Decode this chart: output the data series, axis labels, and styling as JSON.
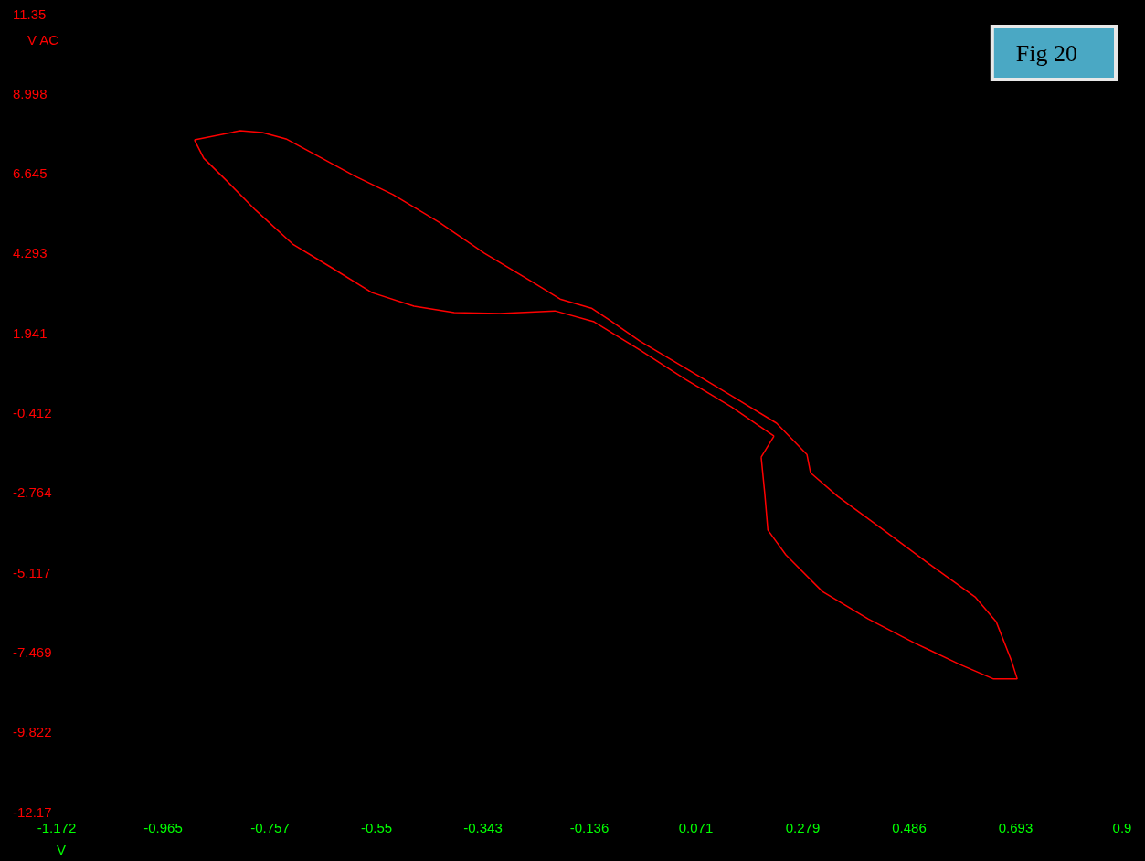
{
  "chart_data": {
    "type": "line",
    "xlabel": "V",
    "ylabel": "V AC",
    "annotations": [
      "Fig 20"
    ],
    "xlim": [
      -1.172,
      0.9
    ],
    "ylim": [
      -12.17,
      11.35
    ],
    "xticks": [
      -1.172,
      -0.965,
      -0.757,
      -0.55,
      -0.343,
      -0.136,
      0.071,
      0.279,
      0.486,
      0.693,
      0.9
    ],
    "yticks": [
      -12.17,
      -9.822,
      -7.469,
      -5.117,
      -2.764,
      -0.412,
      1.941,
      4.293,
      6.645,
      8.998,
      11.35
    ],
    "grid": false,
    "marker": "none",
    "line_style": "solid",
    "series": [
      {
        "color": "#ff0000",
        "x": [
          -0.904,
          -0.815,
          -0.772,
          -0.726,
          -0.666,
          -0.594,
          -0.518,
          -0.429,
          -0.34,
          -0.251,
          -0.193,
          -0.132,
          -0.097,
          -0.038,
          0.051,
          0.14,
          0.228,
          0.287,
          0.294,
          0.347,
          0.436,
          0.525,
          0.614,
          0.655,
          0.685,
          0.696
        ],
        "values": [
          7.63,
          7.9,
          7.85,
          7.66,
          7.17,
          6.58,
          6.02,
          5.21,
          4.29,
          3.48,
          2.94,
          2.67,
          2.32,
          1.7,
          0.9,
          0.09,
          -0.72,
          -1.64,
          -2.18,
          -2.88,
          -3.87,
          -4.87,
          -5.84,
          -6.57,
          -7.73,
          -8.26
        ]
      },
      {
        "color": "#ff0000",
        "x": [
          0.696,
          0.65,
          0.584,
          0.495,
          0.406,
          0.317,
          0.246,
          0.211,
          0.205,
          0.198
        ],
        "values": [
          -8.26,
          -8.26,
          -7.83,
          -7.19,
          -6.49,
          -5.68,
          -4.6,
          -3.87,
          -2.79,
          -1.72
        ]
      },
      {
        "color": "#ff0000",
        "x": [
          0.198,
          0.223
        ],
        "values": [
          -1.72,
          -1.1
        ]
      },
      {
        "color": "#ff0000",
        "x": [
          0.223,
          0.14,
          0.051,
          -0.038,
          -0.127,
          -0.203,
          -0.31,
          -0.399,
          -0.477,
          -0.559,
          -0.637,
          -0.713,
          -0.785,
          -0.843,
          -0.886,
          -0.904
        ],
        "values": [
          -1.1,
          -0.24,
          0.57,
          1.44,
          2.27,
          2.59,
          2.51,
          2.54,
          2.73,
          3.13,
          3.86,
          4.56,
          5.56,
          6.45,
          7.09,
          7.63
        ]
      }
    ]
  }
}
